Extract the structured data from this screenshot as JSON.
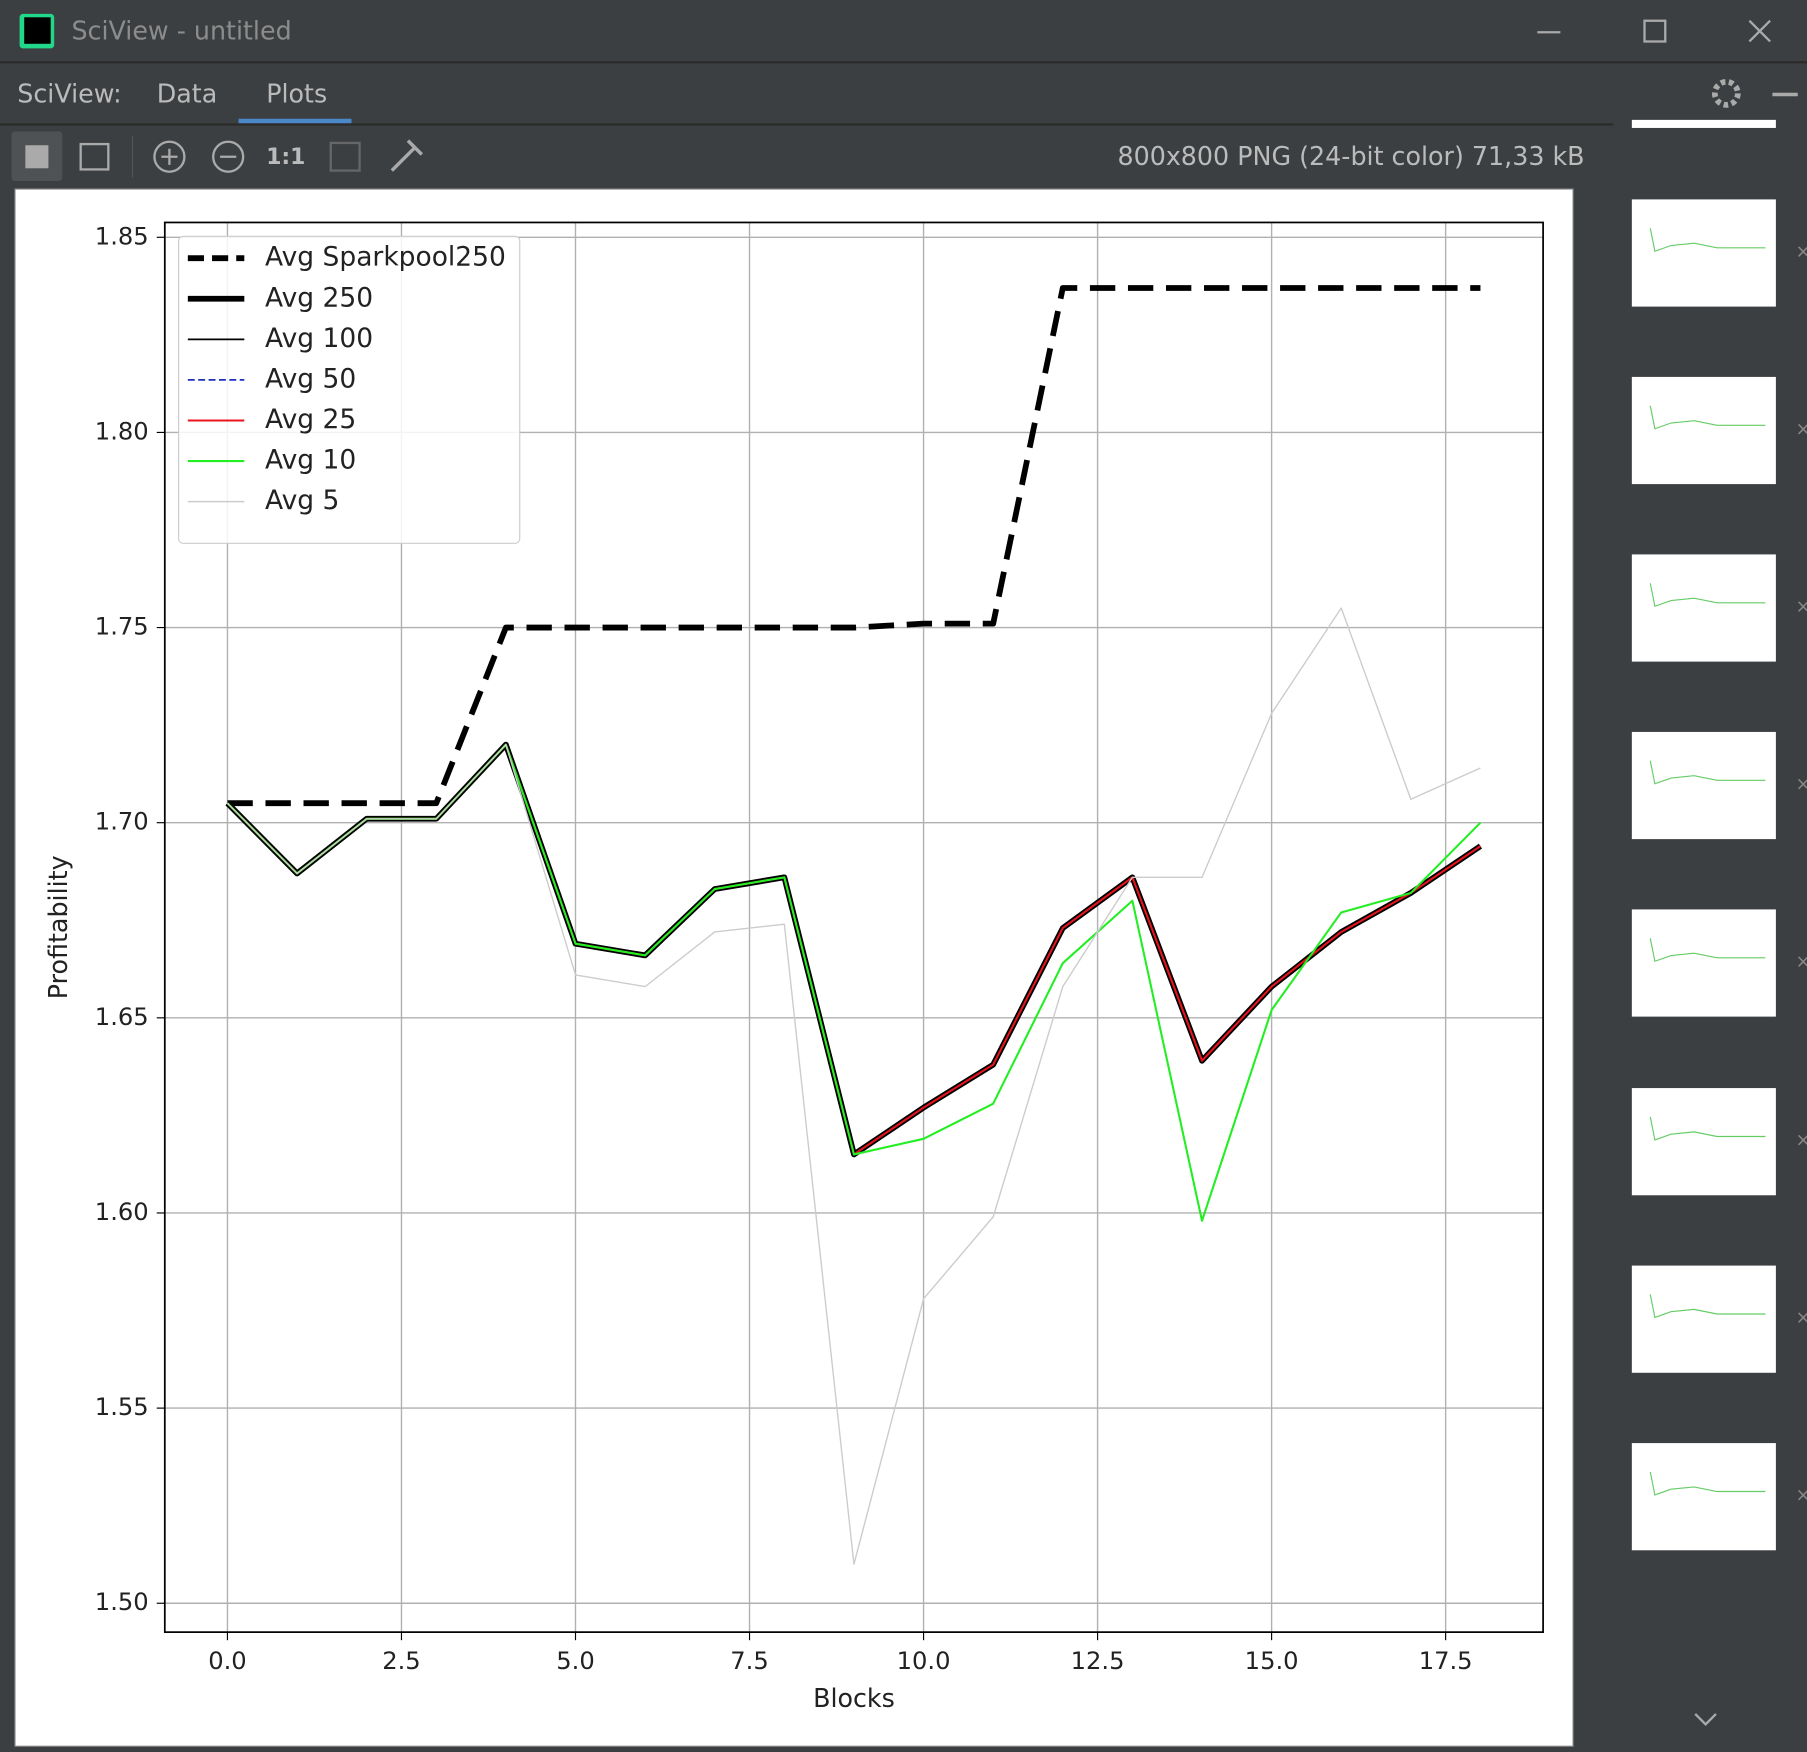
{
  "window": {
    "title": "SciView - untitled",
    "tabs_label": "SciView:",
    "tabs": [
      "Data",
      "Plots"
    ],
    "toolbar_ratio": "1:1",
    "image_info": "800x800 PNG (24-bit color) 71,33 kB"
  },
  "chart_data": {
    "type": "line",
    "xlabel": "Blocks",
    "ylabel": "Profitability",
    "x": [
      0,
      1,
      2,
      3,
      4,
      5,
      6,
      7,
      8,
      9,
      10,
      11,
      12,
      13,
      14,
      15,
      16,
      17,
      18
    ],
    "series": [
      {
        "name": "Avg Sparkpool250",
        "color": "#000000",
        "linestyle": "dashed",
        "linewidth": 5,
        "values": [
          1.705,
          1.705,
          1.705,
          1.705,
          1.75,
          1.75,
          1.75,
          1.75,
          1.75,
          1.75,
          1.751,
          1.751,
          1.837,
          1.837,
          1.837,
          1.837,
          1.837,
          1.837,
          1.837
        ]
      },
      {
        "name": "Avg 250",
        "color": "#000000",
        "linestyle": "solid",
        "linewidth": 5,
        "values": [
          1.705,
          1.687,
          1.701,
          1.701,
          1.72,
          1.669,
          1.666,
          1.683,
          1.686,
          1.615,
          1.627,
          1.638,
          1.673,
          1.686,
          1.639,
          1.658,
          1.672,
          1.682,
          1.694
        ]
      },
      {
        "name": "Avg 100",
        "color": "#000000",
        "linestyle": "solid",
        "linewidth": 1.5,
        "values": [
          1.705,
          1.687,
          1.701,
          1.701,
          1.72,
          1.669,
          1.666,
          1.683,
          1.686,
          1.615,
          1.627,
          1.638,
          1.673,
          1.686,
          1.639,
          1.658,
          1.672,
          1.682,
          1.694
        ]
      },
      {
        "name": "Avg 50",
        "color": "#1f2fbf",
        "linestyle": "dashed-thin",
        "linewidth": 1.5,
        "values": [
          1.705,
          1.687,
          1.701,
          1.701,
          1.72,
          1.669,
          1.666,
          1.683,
          1.686,
          1.615,
          1.627,
          1.638,
          1.673,
          1.686,
          1.639,
          1.658,
          1.672,
          1.682,
          1.694
        ]
      },
      {
        "name": "Avg 25",
        "color": "#e8141c",
        "linestyle": "solid",
        "linewidth": 1.8,
        "values": [
          1.705,
          1.687,
          1.701,
          1.701,
          1.72,
          1.669,
          1.666,
          1.683,
          1.686,
          1.615,
          1.627,
          1.638,
          1.673,
          1.686,
          1.639,
          1.658,
          1.672,
          1.682,
          1.694
        ]
      },
      {
        "name": "Avg 10",
        "color": "#22ee22",
        "linestyle": "solid",
        "linewidth": 1.8,
        "values": [
          1.705,
          1.687,
          1.701,
          1.701,
          1.72,
          1.669,
          1.666,
          1.683,
          1.686,
          1.615,
          1.619,
          1.628,
          1.664,
          1.68,
          1.598,
          1.652,
          1.677,
          1.682,
          1.7
        ]
      },
      {
        "name": "Avg 5",
        "color": "#cccccc",
        "linestyle": "solid",
        "linewidth": 1.2,
        "values": [
          1.705,
          1.687,
          1.701,
          1.701,
          1.72,
          1.661,
          1.658,
          1.672,
          1.674,
          1.51,
          1.578,
          1.599,
          1.658,
          1.686,
          1.686,
          1.728,
          1.755,
          1.706,
          1.714
        ]
      }
    ],
    "xlim": [
      -0.9,
      18.9
    ],
    "ylim": [
      1.4926,
      1.8538
    ],
    "xticks": [
      {
        "value": 0,
        "label": "0.0"
      },
      2.5,
      {
        "value": 5,
        "label": "5.0"
      },
      7.5,
      {
        "value": 10,
        "label": "10.0"
      },
      12.5,
      {
        "value": 15,
        "label": "15.0"
      },
      17.5
    ],
    "yticks": [
      {
        "value": 1.5,
        "label": "1.50"
      },
      1.55,
      {
        "value": 1.6,
        "label": "1.60"
      },
      1.65,
      {
        "value": 1.7,
        "label": "1.70"
      },
      1.75,
      {
        "value": 1.8,
        "label": "1.80"
      },
      1.85
    ],
    "grid": true,
    "legend": "upper left"
  }
}
